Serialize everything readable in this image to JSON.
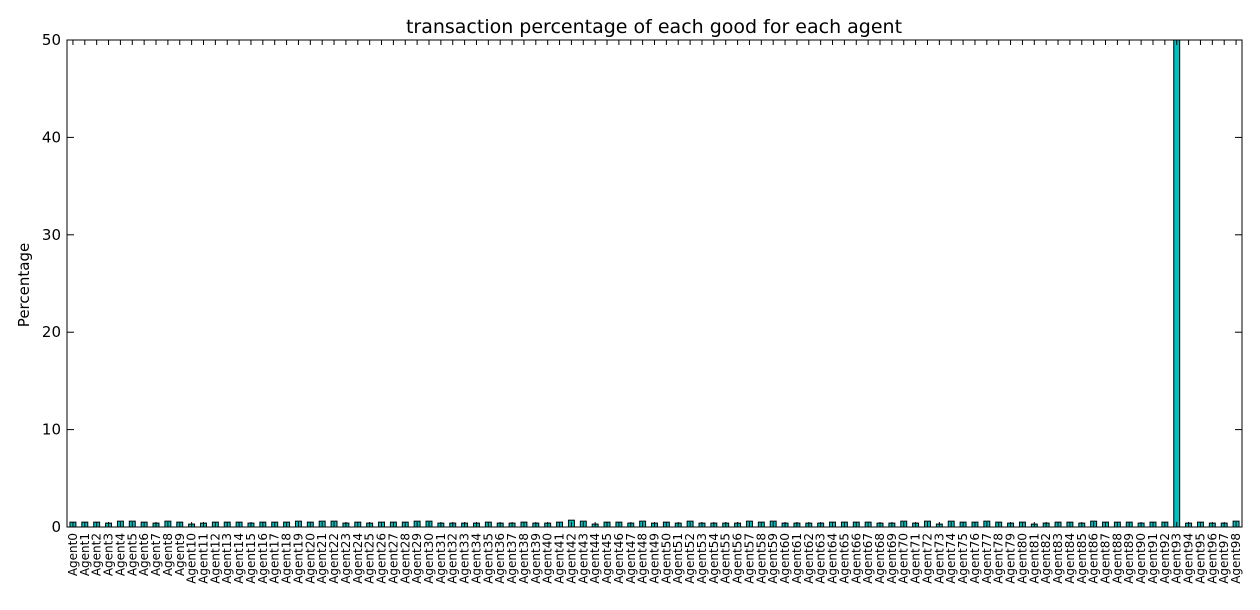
{
  "chart_data": {
    "type": "bar",
    "title": "transaction percentage of each good for each agent",
    "xlabel": "",
    "ylabel": "Percentage",
    "ylim": [
      0,
      50
    ],
    "yticks": [
      0,
      10,
      20,
      30,
      40,
      50
    ],
    "grid": false,
    "bar_color": "#00bfbf",
    "categories": [
      "Agent0",
      "Agent1",
      "Agent2",
      "Agent3",
      "Agent4",
      "Agent5",
      "Agent6",
      "Agent7",
      "Agent8",
      "Agent9",
      "Agent10",
      "Agent11",
      "Agent12",
      "Agent13",
      "Agent14",
      "Agent15",
      "Agent16",
      "Agent17",
      "Agent18",
      "Agent19",
      "Agent20",
      "Agent21",
      "Agent22",
      "Agent23",
      "Agent24",
      "Agent25",
      "Agent26",
      "Agent27",
      "Agent28",
      "Agent29",
      "Agent30",
      "Agent31",
      "Agent32",
      "Agent33",
      "Agent34",
      "Agent35",
      "Agent36",
      "Agent37",
      "Agent38",
      "Agent39",
      "Agent40",
      "Agent41",
      "Agent42",
      "Agent43",
      "Agent44",
      "Agent45",
      "Agent46",
      "Agent47",
      "Agent48",
      "Agent49",
      "Agent50",
      "Agent51",
      "Agent52",
      "Agent53",
      "Agent54",
      "Agent55",
      "Agent56",
      "Agent57",
      "Agent58",
      "Agent59",
      "Agent60",
      "Agent61",
      "Agent62",
      "Agent63",
      "Agent64",
      "Agent65",
      "Agent66",
      "Agent67",
      "Agent68",
      "Agent69",
      "Agent70",
      "Agent71",
      "Agent72",
      "Agent73",
      "Agent74",
      "Agent75",
      "Agent76",
      "Agent77",
      "Agent78",
      "Agent79",
      "Agent80",
      "Agent81",
      "Agent82",
      "Agent83",
      "Agent84",
      "Agent85",
      "Agent86",
      "Agent87",
      "Agent88",
      "Agent89",
      "Agent90",
      "Agent91",
      "Agent92",
      "Agent93",
      "Agent94",
      "Agent95",
      "Agent96",
      "Agent97",
      "Agent98"
    ],
    "values": [
      0.5,
      0.5,
      0.5,
      0.4,
      0.6,
      0.6,
      0.5,
      0.4,
      0.6,
      0.5,
      0.3,
      0.4,
      0.5,
      0.5,
      0.5,
      0.4,
      0.5,
      0.5,
      0.5,
      0.6,
      0.5,
      0.6,
      0.6,
      0.4,
      0.5,
      0.4,
      0.5,
      0.5,
      0.5,
      0.6,
      0.6,
      0.4,
      0.4,
      0.4,
      0.4,
      0.5,
      0.4,
      0.4,
      0.5,
      0.4,
      0.4,
      0.5,
      0.7,
      0.6,
      0.3,
      0.5,
      0.5,
      0.4,
      0.6,
      0.4,
      0.5,
      0.4,
      0.6,
      0.4,
      0.4,
      0.4,
      0.4,
      0.6,
      0.5,
      0.6,
      0.4,
      0.4,
      0.4,
      0.4,
      0.5,
      0.5,
      0.5,
      0.5,
      0.4,
      0.4,
      0.6,
      0.4,
      0.6,
      0.3,
      0.6,
      0.5,
      0.5,
      0.6,
      0.5,
      0.4,
      0.5,
      0.3,
      0.4,
      0.5,
      0.5,
      0.4,
      0.6,
      0.5,
      0.5,
      0.5,
      0.4,
      0.5,
      0.5,
      50,
      0.4,
      0.5,
      0.4,
      0.4,
      0.6
    ]
  }
}
